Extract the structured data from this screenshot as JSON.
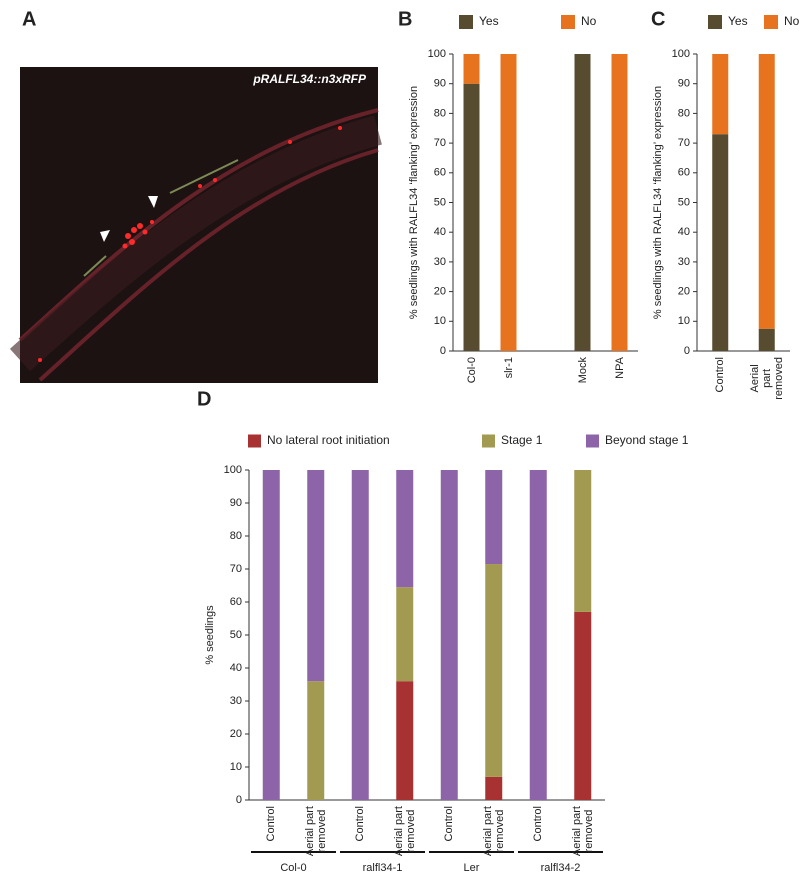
{
  "image_panel": {
    "panel": "A",
    "label": "pRALFL34::n3xRFP"
  },
  "chart_data": [
    {
      "panel": "B",
      "type": "stacked-bar",
      "ylabel": "% seedlings with RALFL34 ‘flanking’ expression",
      "categories": [
        "Col-0",
        "slr-1",
        null,
        "Mock",
        "NPA"
      ],
      "series": [
        {
          "name": "Yes",
          "color": "#574c2f",
          "values": [
            90,
            0,
            null,
            100,
            0
          ]
        },
        {
          "name": "No",
          "color": "#e8731e",
          "values": [
            10,
            100,
            null,
            0,
            100
          ]
        }
      ],
      "ylim": [
        0,
        100
      ],
      "yticks": [
        0,
        10,
        20,
        30,
        40,
        50,
        60,
        70,
        80,
        90,
        100
      ]
    },
    {
      "panel": "C",
      "type": "stacked-bar",
      "ylabel": "% seedlings with RALFL34 ‘flanking’ expression",
      "categories": [
        "Control",
        "Aerial part\nremoved"
      ],
      "series": [
        {
          "name": "Yes",
          "color": "#574c2f",
          "values": [
            73,
            7.5
          ]
        },
        {
          "name": "No",
          "color": "#e8731e",
          "values": [
            27,
            92.5
          ]
        }
      ],
      "ylim": [
        0,
        100
      ],
      "yticks": [
        0,
        10,
        20,
        30,
        40,
        50,
        60,
        70,
        80,
        90,
        100
      ]
    },
    {
      "panel": "D",
      "type": "stacked-bar",
      "ylabel": "% seedlings",
      "categories": [
        "Control",
        "Aerial part\nremoved",
        "Control",
        "Aerial part\nremoved",
        "Control",
        "Aerial part\nremoved",
        "Control",
        "Aerial part\nremoved"
      ],
      "groups": [
        "Col-0",
        "ralfl34-1",
        "Ler",
        "ralfl34-2"
      ],
      "series": [
        {
          "name": "No lateral root initiation",
          "color": "#a83232",
          "values": [
            0,
            0,
            0,
            36,
            0,
            7,
            0,
            57
          ]
        },
        {
          "name": "Stage 1",
          "color": "#a39a52",
          "values": [
            0,
            36,
            0,
            28.5,
            0,
            64.5,
            0,
            43
          ]
        },
        {
          "name": "Beyond stage 1",
          "color": "#8e64a8",
          "values": [
            100,
            64,
            100,
            35.5,
            100,
            28.5,
            100,
            0
          ]
        }
      ],
      "ylim": [
        0,
        100
      ],
      "yticks": [
        0,
        10,
        20,
        30,
        40,
        50,
        60,
        70,
        80,
        90,
        100
      ]
    }
  ]
}
